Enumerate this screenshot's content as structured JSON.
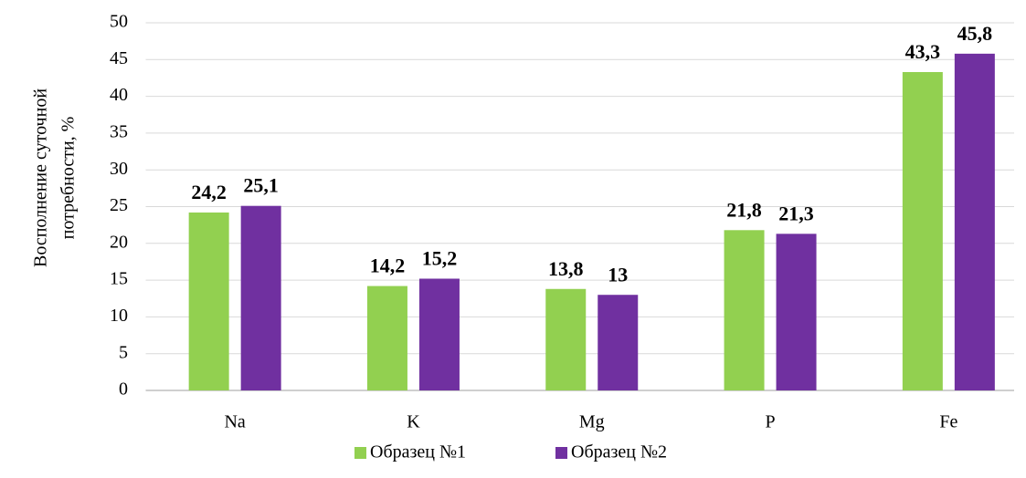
{
  "chart_data": {
    "type": "bar",
    "ylabel": [
      "Восполнение суточной",
      "потребности, %"
    ],
    "categories": [
      "Na",
      "K",
      "Mg",
      "P",
      "Fe"
    ],
    "series": [
      {
        "name": "Образец №1",
        "color": "#92d050",
        "values": [
          24.2,
          14.2,
          13.8,
          21.8,
          43.3
        ],
        "value_labels": [
          "24,2",
          "14,2",
          "13,8",
          "21,8",
          "43,3"
        ]
      },
      {
        "name": "Образец №2",
        "color": "#7030a0",
        "values": [
          25.1,
          15.2,
          13,
          21.3,
          45.8
        ],
        "value_labels": [
          "25,1",
          "15,2",
          "13",
          "21,3",
          "45,8"
        ]
      }
    ],
    "ylim": [
      0,
      50
    ],
    "yticks": [
      0,
      5,
      10,
      15,
      20,
      25,
      30,
      35,
      40,
      45,
      50
    ],
    "grid": true,
    "legend": "bottom"
  }
}
